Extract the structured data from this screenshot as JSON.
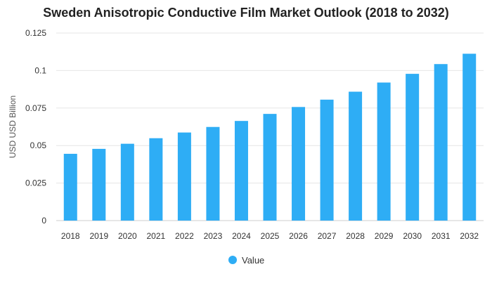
{
  "chart_data": {
    "type": "bar",
    "title": "Sweden Anisotropic Conductive Film Market Outlook (2018 to 2032)",
    "xlabel": "",
    "ylabel": "USD USD Billion",
    "categories": [
      "2018",
      "2019",
      "2020",
      "2021",
      "2022",
      "2023",
      "2024",
      "2025",
      "2026",
      "2027",
      "2028",
      "2029",
      "2030",
      "2031",
      "2032"
    ],
    "series": [
      {
        "name": "Value",
        "color": "#2EADF5",
        "values": [
          0.0445,
          0.0478,
          0.0512,
          0.0549,
          0.0587,
          0.0624,
          0.0664,
          0.0711,
          0.0757,
          0.0806,
          0.0859,
          0.092,
          0.0978,
          0.1043,
          0.1112
        ]
      }
    ],
    "ylim": [
      0,
      0.125
    ],
    "yticks": [
      "0",
      "0.025",
      "0.05",
      "0.075",
      "0.1",
      "0.125"
    ],
    "ytick_values": [
      0,
      0.025,
      0.05,
      0.075,
      0.1,
      0.125
    ],
    "grid": true,
    "legend_position": "bottom-center"
  }
}
